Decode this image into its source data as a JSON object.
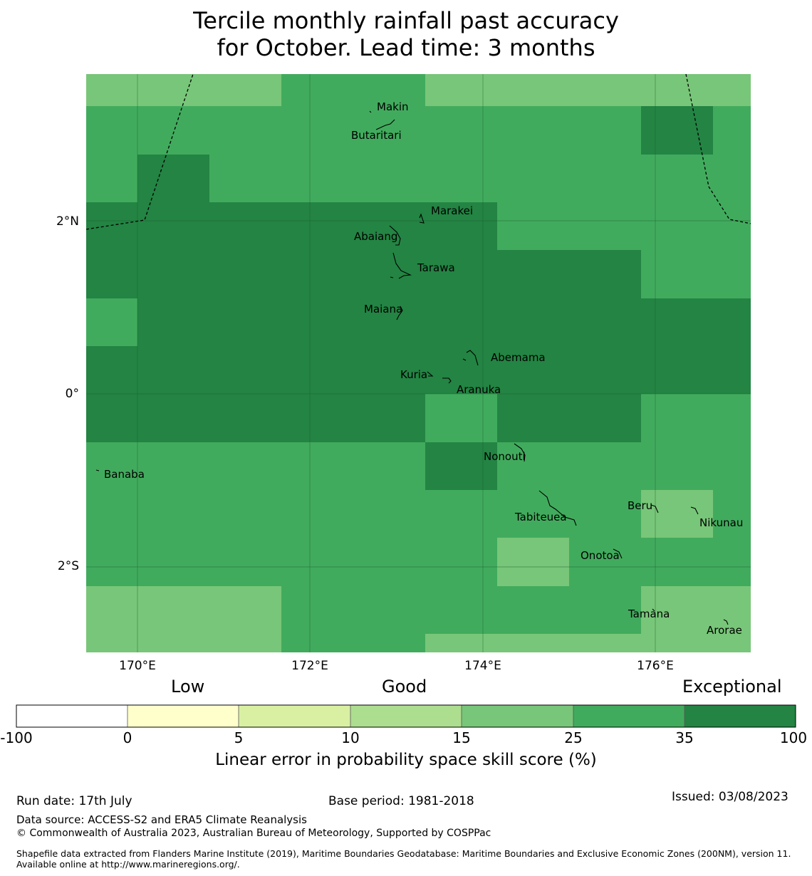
{
  "title_line1": "Tercile monthly rainfall past accuracy",
  "title_line2": "for October. Lead time: 3 months",
  "map": {
    "lon_labels": [
      "170°E",
      "172°E",
      "174°E",
      "176°E"
    ],
    "lat_labels": [
      "2°N",
      "0°",
      "2°S"
    ],
    "islands": [
      "Makin",
      "Butaritari",
      "Marakei",
      "Abaiang",
      "Tarawa",
      "Maiana",
      "Abemama",
      "Kuria",
      "Aranuka",
      "Nonouti",
      "Banaba",
      "Beru",
      "Nikunau",
      "Tabiteuea",
      "Onotoa",
      "Tamana",
      "Arorae"
    ]
  },
  "colorbar": {
    "category_low": "Low",
    "category_good": "Good",
    "category_exceptional": "Exceptional",
    "ticks": [
      "-100",
      "0",
      "5",
      "10",
      "15",
      "25",
      "35",
      "100"
    ],
    "colors": [
      "#ffffff",
      "#ffffcc",
      "#d9f0a3",
      "#addd8e",
      "#78c679",
      "#41ab5d",
      "#238443"
    ],
    "label": "Linear error in probability space skill score (%)"
  },
  "footer": {
    "run_date": "Run date: 17th July",
    "base_period": "Base period: 1981-2018",
    "issued": "Issued: 03/08/2023",
    "data_source": "Data source: ACCESS-S2 and ERA5 Climate Reanalysis",
    "copyright": "© Commonwealth of Australia 2023, Australian Bureau of Meteorology, Supported by COSPPac",
    "shapefile": "Shapefile data extracted from Flanders Marine Institute (2019), Maritime Boundaries Geodatabase: Maritime Boundaries and Exclusive Economic Zones (200NM), version 11. Available online at http://www.marineregions.org/."
  }
}
